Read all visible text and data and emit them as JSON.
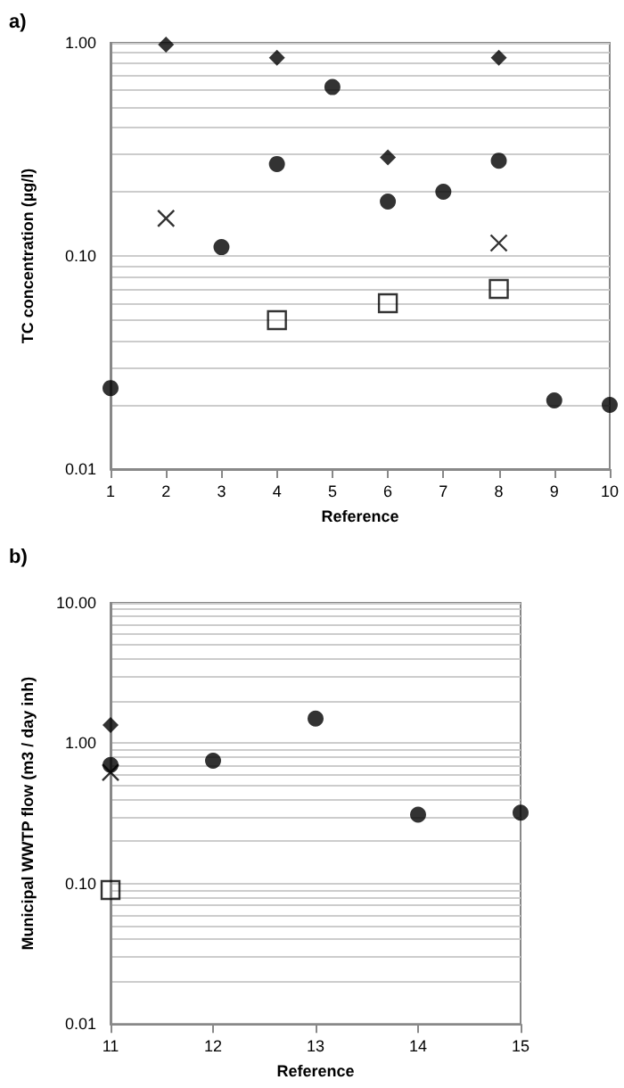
{
  "chart_data": [
    {
      "type": "scatter",
      "title": "a)",
      "xlabel": "Reference",
      "ylabel": "TC concentration (µg/l)",
      "log": true,
      "grid": "y",
      "xlim": [
        1,
        10
      ],
      "xticks": [
        1,
        2,
        3,
        4,
        5,
        6,
        7,
        8,
        9,
        10
      ],
      "ylim": [
        0.01,
        1
      ],
      "yticks": [
        {
          "value": 0.01,
          "label": "0.01"
        },
        {
          "value": 0.02,
          "label": null
        },
        {
          "value": 0.03,
          "label": null
        },
        {
          "value": 0.04,
          "label": null
        },
        {
          "value": 0.05,
          "label": null
        },
        {
          "value": 0.06,
          "label": null
        },
        {
          "value": 0.07,
          "label": null
        },
        {
          "value": 0.08,
          "label": null
        },
        {
          "value": 0.09,
          "label": null
        },
        {
          "value": 0.1,
          "label": "0.10"
        },
        {
          "value": 0.2,
          "label": null
        },
        {
          "value": 0.3,
          "label": null
        },
        {
          "value": 0.4,
          "label": null
        },
        {
          "value": 0.5,
          "label": null
        },
        {
          "value": 0.6,
          "label": null
        },
        {
          "value": 0.7,
          "label": null
        },
        {
          "value": 0.8,
          "label": null
        },
        {
          "value": 0.9,
          "label": null
        },
        {
          "value": 1,
          "label": "1.00"
        }
      ],
      "series": [
        {
          "marker": "circle",
          "color": "#000000",
          "x": [
            1,
            3,
            4,
            5,
            6,
            7,
            8,
            9,
            10
          ],
          "values": [
            0.024,
            0.11,
            0.27,
            0.62,
            0.18,
            0.2,
            0.28,
            0.021,
            0.02
          ]
        },
        {
          "marker": "diamond",
          "color": "#000000",
          "x": [
            2,
            4,
            6,
            8
          ],
          "values": [
            0.98,
            0.85,
            0.29,
            0.85
          ]
        },
        {
          "marker": "cross",
          "color": "#000000",
          "x": [
            2,
            8
          ],
          "values": [
            0.15,
            0.115
          ]
        },
        {
          "marker": "square",
          "color": "#000000",
          "x": [
            4,
            6,
            8
          ],
          "values": [
            0.05,
            0.06,
            0.07
          ]
        }
      ]
    },
    {
      "type": "scatter",
      "title": "b)",
      "xlabel": "Reference",
      "ylabel": "Municipal WWTP flow (m3 / day inh)",
      "log": true,
      "grid": "y",
      "xlim": [
        11,
        15
      ],
      "xticks": [
        11,
        12,
        13,
        14,
        15
      ],
      "ylim": [
        0.01,
        10
      ],
      "yticks": [
        {
          "value": 0.01,
          "label": "0.01"
        },
        {
          "value": 0.02,
          "label": null
        },
        {
          "value": 0.03,
          "label": null
        },
        {
          "value": 0.04,
          "label": null
        },
        {
          "value": 0.05,
          "label": null
        },
        {
          "value": 0.06,
          "label": null
        },
        {
          "value": 0.07,
          "label": null
        },
        {
          "value": 0.08,
          "label": null
        },
        {
          "value": 0.09,
          "label": null
        },
        {
          "value": 0.1,
          "label": "0.10"
        },
        {
          "value": 0.2,
          "label": null
        },
        {
          "value": 0.3,
          "label": null
        },
        {
          "value": 0.4,
          "label": null
        },
        {
          "value": 0.5,
          "label": null
        },
        {
          "value": 0.6,
          "label": null
        },
        {
          "value": 0.7,
          "label": null
        },
        {
          "value": 0.8,
          "label": null
        },
        {
          "value": 0.9,
          "label": null
        },
        {
          "value": 1,
          "label": "1.00"
        },
        {
          "value": 2,
          "label": null
        },
        {
          "value": 3,
          "label": null
        },
        {
          "value": 4,
          "label": null
        },
        {
          "value": 5,
          "label": null
        },
        {
          "value": 6,
          "label": null
        },
        {
          "value": 7,
          "label": null
        },
        {
          "value": 8,
          "label": null
        },
        {
          "value": 9,
          "label": null
        },
        {
          "value": 10,
          "label": "10.00"
        }
      ],
      "series": [
        {
          "marker": "circle",
          "color": "#000000",
          "x": [
            11,
            12,
            13,
            14,
            15
          ],
          "values": [
            0.7,
            0.75,
            1.5,
            0.31,
            0.32
          ]
        },
        {
          "marker": "diamond",
          "color": "#000000",
          "x": [
            11
          ],
          "values": [
            1.35
          ]
        },
        {
          "marker": "cross",
          "color": "#000000",
          "x": [
            11
          ],
          "values": [
            0.62
          ]
        },
        {
          "marker": "square",
          "color": "#000000",
          "x": [
            11
          ],
          "values": [
            0.09
          ]
        }
      ]
    }
  ]
}
